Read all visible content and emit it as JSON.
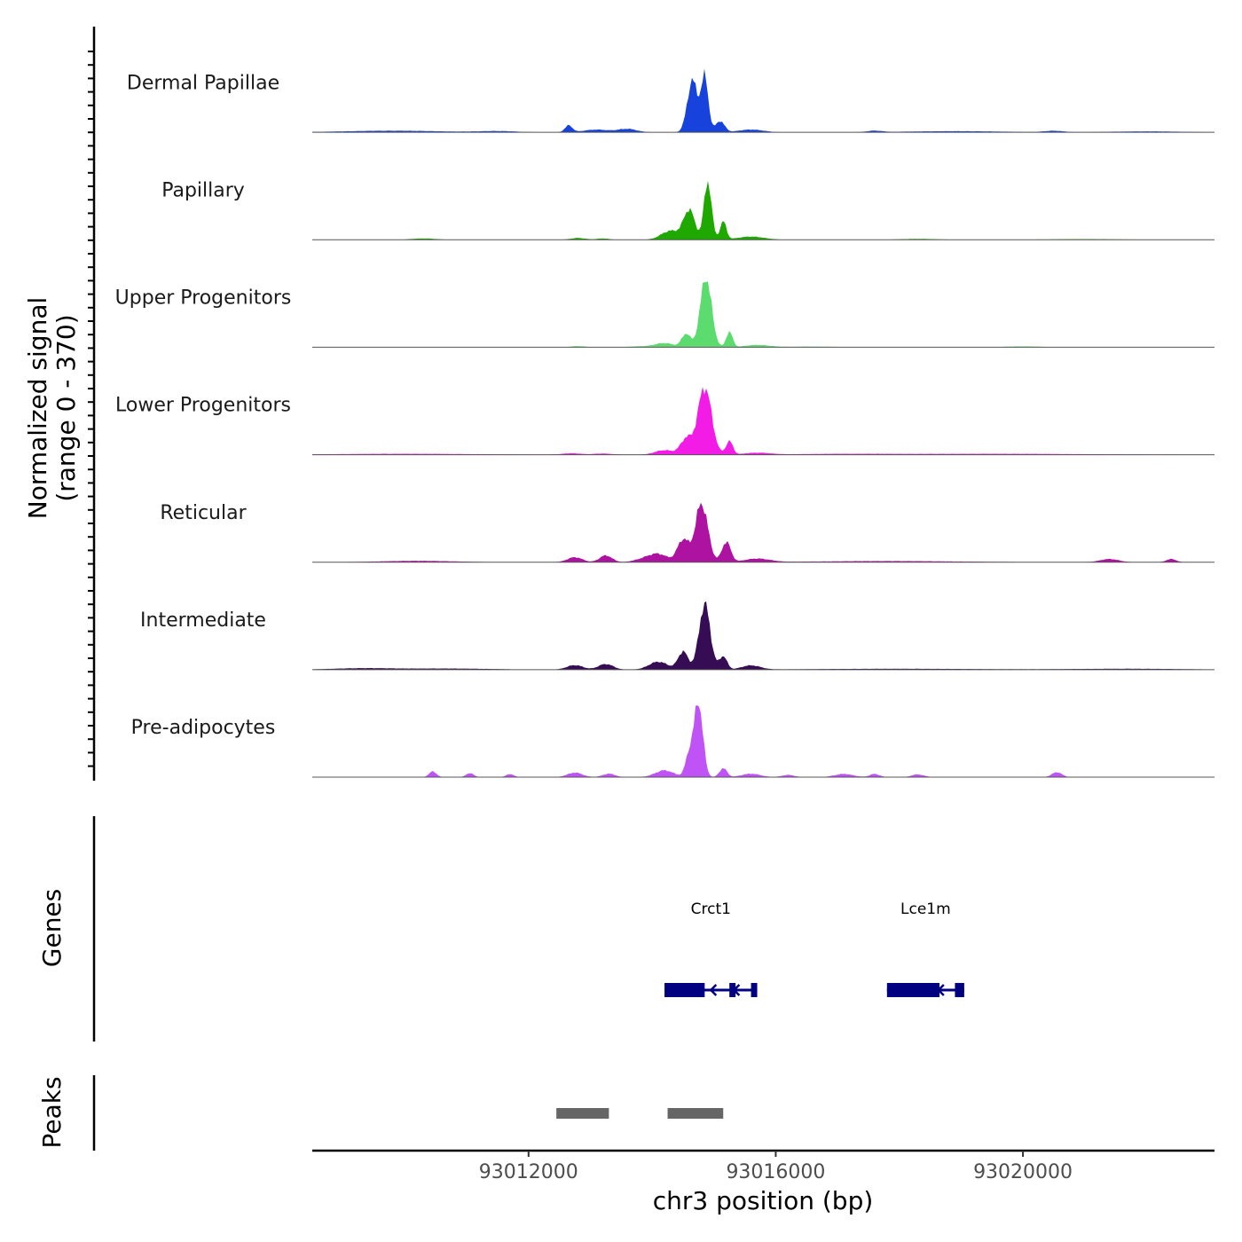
{
  "chart_data": {
    "type": "area",
    "description_kind": "coverage-track",
    "chromosome": "chr3",
    "xlabel": "chr3 position (bp)",
    "ylabel_line1": "Normalized signal",
    "ylabel_line2": "(range 0 - 370)",
    "xlim": [
      93008500,
      93023100
    ],
    "ylim": [
      0,
      370
    ],
    "x_ticks": [
      93012000,
      93016000,
      93020000
    ],
    "x_tick_labels": [
      "93012000",
      "93016000",
      "93020000"
    ],
    "series": [
      {
        "name": "Dermal Papillae",
        "color": "#1742DB",
        "peaks": [
          [
            93014650,
            80,
            230
          ],
          [
            93014850,
            60,
            240
          ],
          [
            93015100,
            70,
            50
          ],
          [
            93012650,
            60,
            30
          ],
          [
            93013100,
            200,
            12
          ],
          [
            93013600,
            150,
            15
          ],
          [
            93015600,
            200,
            12
          ],
          [
            93017600,
            120,
            6
          ],
          [
            93020500,
            150,
            6
          ],
          [
            93009800,
            800,
            7
          ],
          [
            93011500,
            300,
            5
          ],
          [
            93018900,
            800,
            5
          ],
          [
            93022000,
            600,
            4
          ]
        ]
      },
      {
        "name": "Papillary",
        "color": "#1EA800",
        "peaks": [
          [
            93014600,
            90,
            130
          ],
          [
            93014900,
            60,
            260
          ],
          [
            93015150,
            50,
            80
          ],
          [
            93014300,
            150,
            40
          ],
          [
            93015600,
            220,
            14
          ],
          [
            93012800,
            120,
            8
          ],
          [
            93013200,
            100,
            6
          ],
          [
            93010300,
            200,
            6
          ],
          [
            93018300,
            300,
            4
          ],
          [
            93021000,
            600,
            3
          ]
        ]
      },
      {
        "name": "Upper Progenitors",
        "color": "#5CDC6E",
        "peaks": [
          [
            93014870,
            90,
            310
          ],
          [
            93014550,
            70,
            60
          ],
          [
            93015250,
            50,
            70
          ],
          [
            93014200,
            150,
            18
          ],
          [
            93015700,
            200,
            10
          ],
          [
            93012800,
            120,
            5
          ],
          [
            93013800,
            200,
            4
          ],
          [
            93020000,
            300,
            4
          ],
          [
            93016600,
            400,
            3
          ]
        ]
      },
      {
        "name": "Lower Progenitors",
        "color": "#F21CE6",
        "peaks": [
          [
            93014850,
            110,
            300
          ],
          [
            93014550,
            90,
            70
          ],
          [
            93015250,
            55,
            60
          ],
          [
            93014200,
            150,
            20
          ],
          [
            93015700,
            200,
            8
          ],
          [
            93012700,
            150,
            6
          ],
          [
            93013200,
            150,
            5
          ],
          [
            93010000,
            1200,
            4
          ],
          [
            93019500,
            1500,
            4
          ],
          [
            93017000,
            800,
            3
          ]
        ]
      },
      {
        "name": "Reticular",
        "color": "#AE12A0",
        "peaks": [
          [
            93014800,
            100,
            260
          ],
          [
            93014500,
            90,
            100
          ],
          [
            93015200,
            70,
            90
          ],
          [
            93014100,
            150,
            35
          ],
          [
            93015700,
            200,
            15
          ],
          [
            93012750,
            120,
            22
          ],
          [
            93013250,
            100,
            30
          ],
          [
            93013850,
            150,
            12
          ],
          [
            93021400,
            150,
            14
          ],
          [
            93022400,
            80,
            14
          ],
          [
            93010200,
            600,
            6
          ],
          [
            93017800,
            1200,
            5
          ]
        ]
      },
      {
        "name": "Intermediate",
        "color": "#360C55",
        "peaks": [
          [
            93014850,
            90,
            290
          ],
          [
            93014500,
            80,
            80
          ],
          [
            93015150,
            60,
            60
          ],
          [
            93014100,
            150,
            35
          ],
          [
            93015600,
            150,
            18
          ],
          [
            93012750,
            130,
            20
          ],
          [
            93013250,
            120,
            25
          ],
          [
            93009300,
            500,
            6
          ],
          [
            93010700,
            700,
            5
          ],
          [
            93018000,
            1400,
            4
          ],
          [
            93021700,
            900,
            4
          ]
        ]
      },
      {
        "name": "Pre-adipocytes",
        "color": "#C053F5",
        "peaks": [
          [
            93014750,
            70,
            330
          ],
          [
            93014600,
            60,
            100
          ],
          [
            93015150,
            60,
            40
          ],
          [
            93014200,
            150,
            30
          ],
          [
            93015600,
            150,
            15
          ],
          [
            93012750,
            120,
            20
          ],
          [
            93013300,
            100,
            15
          ],
          [
            93010450,
            60,
            25
          ],
          [
            93011050,
            60,
            18
          ],
          [
            93011700,
            60,
            14
          ],
          [
            93017100,
            150,
            14
          ],
          [
            93017600,
            80,
            14
          ],
          [
            93018300,
            100,
            12
          ],
          [
            93020550,
            80,
            22
          ],
          [
            93016200,
            100,
            10
          ]
        ]
      }
    ],
    "genes_track_label": "Genes",
    "genes": [
      {
        "name": "Crct1",
        "start": 93014200,
        "end": 93015700,
        "strand": "-",
        "color": "#000080",
        "exons": [
          [
            93014200,
            93014850
          ],
          [
            93015250,
            93015350
          ],
          [
            93015600,
            93015700
          ]
        ]
      },
      {
        "name": "Lce1m",
        "start": 93017800,
        "end": 93019050,
        "strand": "-",
        "color": "#000080",
        "exons": [
          [
            93017800,
            93018650
          ],
          [
            93018900,
            93019050
          ]
        ]
      }
    ],
    "peaks_track_label": "Peaks",
    "peak_regions": [
      [
        93012450,
        93013300
      ],
      [
        93014250,
        93015150
      ]
    ],
    "peak_color": "#666666"
  }
}
